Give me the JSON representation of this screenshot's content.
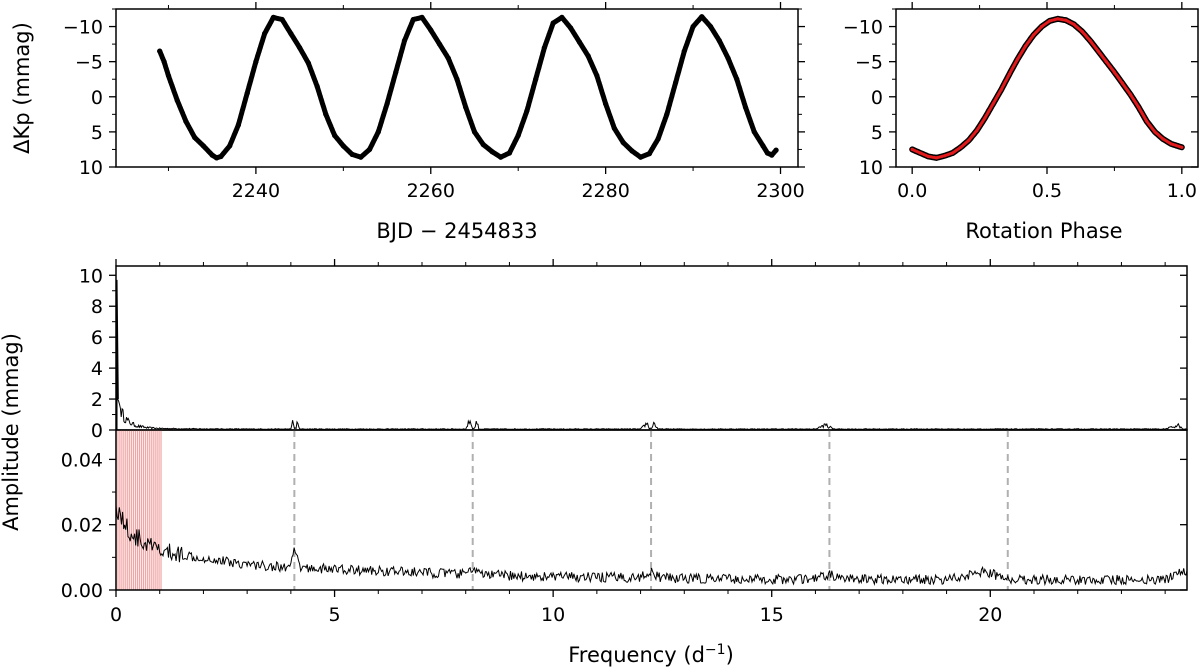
{
  "chart_data": [
    {
      "id": "light_curve",
      "type": "scatter",
      "xlabel": "BJD − 2454833",
      "ylabel": "ΔKp (mmag)",
      "xlim": [
        2224,
        2302
      ],
      "ylim": [
        10,
        -12.5
      ],
      "y_inverted": true,
      "xticks": [
        2240,
        2260,
        2280,
        2300
      ],
      "yticks": [
        -10,
        -5,
        0,
        5,
        10
      ],
      "ytick_labels": [
        "−10",
        "−5",
        "0",
        "5",
        "10"
      ],
      "series": [
        {
          "marker_color": "#000000",
          "x": [
            2229.0,
            2229.5,
            2230.0,
            2231.0,
            2232.0,
            2233.0,
            2234.0,
            2235.0,
            2235.5,
            2236.0,
            2237.0,
            2238.0,
            2239.0,
            2240.0,
            2241.0,
            2242.0,
            2243.0,
            2244.0,
            2245.0,
            2246.0,
            2247.0,
            2248.0,
            2249.0,
            2250.0,
            2251.0,
            2252.0,
            2253.0,
            2254.0,
            2255.0,
            2256.0,
            2257.0,
            2258.0,
            2259.0,
            2260.0,
            2261.0,
            2262.0,
            2263.0,
            2264.0,
            2265.0,
            2266.0,
            2267.0,
            2268.0,
            2269.0,
            2270.0,
            2271.0,
            2272.0,
            2273.0,
            2274.0,
            2275.0,
            2276.0,
            2277.0,
            2278.0,
            2279.0,
            2280.0,
            2281.0,
            2282.0,
            2283.0,
            2284.0,
            2285.0,
            2286.0,
            2287.0,
            2288.0,
            2289.0,
            2290.0,
            2291.0,
            2292.0,
            2293.0,
            2294.0,
            2295.0,
            2296.0,
            2297.0,
            2298.0,
            2298.5,
            2299.0,
            2299.5
          ],
          "y": [
            -6.5,
            -5.0,
            -3.0,
            0.5,
            3.5,
            5.8,
            7.0,
            8.3,
            8.7,
            8.5,
            7.0,
            4.0,
            -0.5,
            -5.0,
            -9.0,
            -11.3,
            -11.0,
            -9.0,
            -7.0,
            -4.8,
            -1.5,
            2.5,
            5.5,
            7.0,
            8.2,
            8.6,
            7.5,
            5.0,
            1.0,
            -3.5,
            -8.0,
            -11.0,
            -11.3,
            -9.5,
            -7.5,
            -5.5,
            -2.5,
            1.5,
            5.0,
            6.8,
            7.8,
            8.6,
            8.0,
            5.5,
            2.0,
            -2.5,
            -7.0,
            -10.5,
            -11.3,
            -9.8,
            -7.8,
            -5.8,
            -3.0,
            1.0,
            4.5,
            6.5,
            7.7,
            8.6,
            8.1,
            6.0,
            2.5,
            -2.0,
            -6.5,
            -10.0,
            -11.4,
            -10.0,
            -8.0,
            -5.5,
            -2.5,
            1.5,
            5.0,
            7.0,
            8.0,
            8.3,
            7.6
          ]
        }
      ]
    },
    {
      "id": "phase_curve",
      "type": "scatter",
      "xlabel": "Rotation Phase",
      "ylabel": "",
      "xlim": [
        -0.06,
        1.06
      ],
      "ylim": [
        10,
        -12.5
      ],
      "y_inverted": true,
      "xticks": [
        0.0,
        0.5,
        1.0
      ],
      "xtick_labels": [
        "0.0",
        "0.5",
        "1.0"
      ],
      "yticks": [
        -10,
        -5,
        0,
        5,
        10
      ],
      "ytick_labels": [
        "−10",
        "−5",
        "0",
        "5",
        "10"
      ],
      "series": [
        {
          "marker_color": "#000000",
          "fit_color": "#e31a1c",
          "x": [
            0.0,
            0.03,
            0.06,
            0.09,
            0.12,
            0.15,
            0.18,
            0.21,
            0.24,
            0.27,
            0.3,
            0.33,
            0.36,
            0.39,
            0.42,
            0.45,
            0.48,
            0.51,
            0.54,
            0.57,
            0.6,
            0.63,
            0.66,
            0.69,
            0.72,
            0.75,
            0.78,
            0.81,
            0.84,
            0.87,
            0.9,
            0.93,
            0.96,
            1.0
          ],
          "y": [
            7.5,
            8.0,
            8.5,
            8.7,
            8.4,
            8.0,
            7.2,
            6.2,
            4.8,
            3.0,
            1.0,
            -1.0,
            -3.2,
            -5.3,
            -7.2,
            -8.8,
            -10.0,
            -10.8,
            -11.1,
            -10.9,
            -10.3,
            -9.3,
            -8.0,
            -6.5,
            -5.0,
            -3.5,
            -1.9,
            -0.3,
            1.5,
            3.5,
            5.0,
            6.0,
            6.7,
            7.2
          ]
        }
      ]
    },
    {
      "id": "amplitude_spectrum_top",
      "type": "line",
      "xlabel": "",
      "ylabel": "Amplitude (mmag)",
      "xlim": [
        0,
        24.5
      ],
      "ylim": [
        0,
        10.6
      ],
      "yticks": [
        0,
        2,
        4,
        6,
        8,
        10
      ],
      "ytick_labels": [
        "0",
        "2",
        "4",
        "6",
        "8",
        "10"
      ],
      "series": [
        {
          "line_color": "#000000",
          "x": [
            0.0,
            0.04,
            0.07,
            0.1,
            0.15,
            0.2,
            0.3,
            0.4,
            0.5,
            0.7,
            1.0,
            1.5,
            2.0,
            3.0,
            4.0,
            4.05,
            4.08,
            4.12,
            4.15,
            4.2,
            5.0,
            8.0,
            8.1,
            8.15,
            8.2,
            8.25,
            8.3,
            9.0,
            12.0,
            12.15,
            12.2,
            12.25,
            12.3,
            12.4,
            13.0,
            16.0,
            16.25,
            16.3,
            16.35,
            16.4,
            17.0,
            20.0,
            24.0,
            24.3,
            24.4,
            24.5
          ],
          "y": [
            9.7,
            2.0,
            1.8,
            1.4,
            1.0,
            0.8,
            0.5,
            0.35,
            0.25,
            0.15,
            0.1,
            0.08,
            0.07,
            0.06,
            0.06,
            0.7,
            0.1,
            0.1,
            0.6,
            0.06,
            0.06,
            0.06,
            0.65,
            0.1,
            0.1,
            0.6,
            0.06,
            0.06,
            0.06,
            0.45,
            0.1,
            0.1,
            0.45,
            0.06,
            0.06,
            0.06,
            0.35,
            0.1,
            0.3,
            0.06,
            0.06,
            0.06,
            0.06,
            0.3,
            0.06,
            0.06
          ]
        }
      ]
    },
    {
      "id": "amplitude_spectrum_zoom",
      "type": "line",
      "xlabel": "Frequency (d⁻¹)",
      "xlabel_main": "Frequency (d",
      "xlabel_sup": "−1",
      "xlabel_close": ")",
      "ylabel": "Amplitude (mmag)",
      "xlim": [
        0,
        24.5
      ],
      "ylim": [
        0,
        0.049
      ],
      "xticks": [
        0,
        5,
        10,
        15,
        20
      ],
      "xtick_labels": [
        "0",
        "5",
        "10",
        "15",
        "20"
      ],
      "yticks": [
        0.0,
        0.02,
        0.04
      ],
      "ytick_labels": [
        "0.00",
        "0.02",
        "0.04"
      ],
      "shaded_band": {
        "x_start": 0.0,
        "x_end": 1.03,
        "color": "#f2a3a3",
        "line_count": 24
      },
      "harmonic_markers": {
        "x": [
          4.08,
          8.16,
          12.24,
          16.32,
          20.4
        ],
        "color": "#b0b0b0",
        "style": "dashed"
      },
      "series": [
        {
          "line_color": "#000000",
          "x": [
            0.0,
            0.3,
            0.6,
            1.0,
            1.5,
            2.0,
            2.5,
            3.0,
            3.5,
            4.0,
            4.08,
            4.2,
            5.0,
            6.0,
            7.0,
            8.0,
            8.15,
            8.3,
            9.0,
            10.0,
            11.0,
            12.0,
            12.2,
            12.4,
            13.0,
            14.0,
            15.0,
            16.0,
            16.3,
            16.6,
            17.0,
            18.0,
            19.0,
            19.9,
            20.3,
            21.0,
            22.0,
            23.0,
            24.0,
            24.4
          ],
          "y": [
            0.026,
            0.018,
            0.015,
            0.012,
            0.011,
            0.01,
            0.009,
            0.008,
            0.0075,
            0.007,
            0.013,
            0.007,
            0.0065,
            0.006,
            0.0055,
            0.005,
            0.007,
            0.005,
            0.0045,
            0.0042,
            0.004,
            0.004,
            0.006,
            0.004,
            0.0037,
            0.0035,
            0.0034,
            0.0035,
            0.005,
            0.0035,
            0.0034,
            0.0034,
            0.0034,
            0.006,
            0.0035,
            0.0034,
            0.0033,
            0.0033,
            0.0033,
            0.006
          ],
          "noise_amplitude": 0.0025
        }
      ]
    }
  ]
}
